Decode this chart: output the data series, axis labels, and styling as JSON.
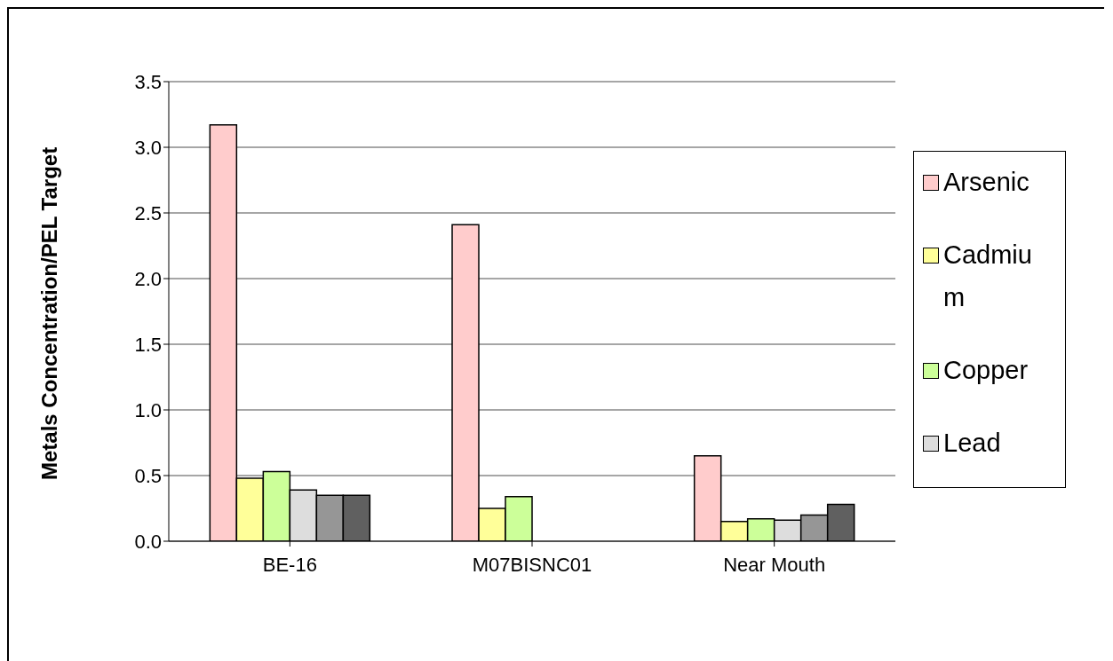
{
  "chart_data": {
    "type": "bar",
    "ylabel": "Metals Concentration/PEL Target",
    "categories": [
      "BE-16",
      "M07BISNC01",
      "Near Mouth"
    ],
    "series": [
      {
        "name": "Arsenic",
        "color": "#ffcccc",
        "values": [
          3.17,
          2.41,
          0.65
        ]
      },
      {
        "name": "Cadmium",
        "color": "#ffff99",
        "values": [
          0.48,
          0.25,
          0.15
        ]
      },
      {
        "name": "Copper",
        "color": "#ccff99",
        "values": [
          0.53,
          0.34,
          0.17
        ]
      },
      {
        "name": "Lead",
        "color": "#dddddd",
        "values": [
          0.39,
          null,
          0.16
        ]
      },
      {
        "color": "#969696",
        "values": [
          0.35,
          null,
          0.2
        ]
      },
      {
        "color": "#606060",
        "values": [
          0.35,
          null,
          0.28
        ]
      }
    ],
    "ylim": [
      0,
      3.5
    ],
    "yticks": [
      {
        "value": 0,
        "label": "0.0"
      },
      {
        "value": 0.5,
        "label": "0.5"
      },
      {
        "value": 1,
        "label": "1.0"
      },
      {
        "value": 1.5,
        "label": "1.5"
      },
      {
        "value": 2,
        "label": "2.0"
      },
      {
        "value": 2.5,
        "label": "2.5"
      },
      {
        "value": 3,
        "label": "3.0"
      },
      {
        "value": 3.5,
        "label": "3.5"
      }
    ],
    "grid": "y",
    "legend": "right"
  }
}
